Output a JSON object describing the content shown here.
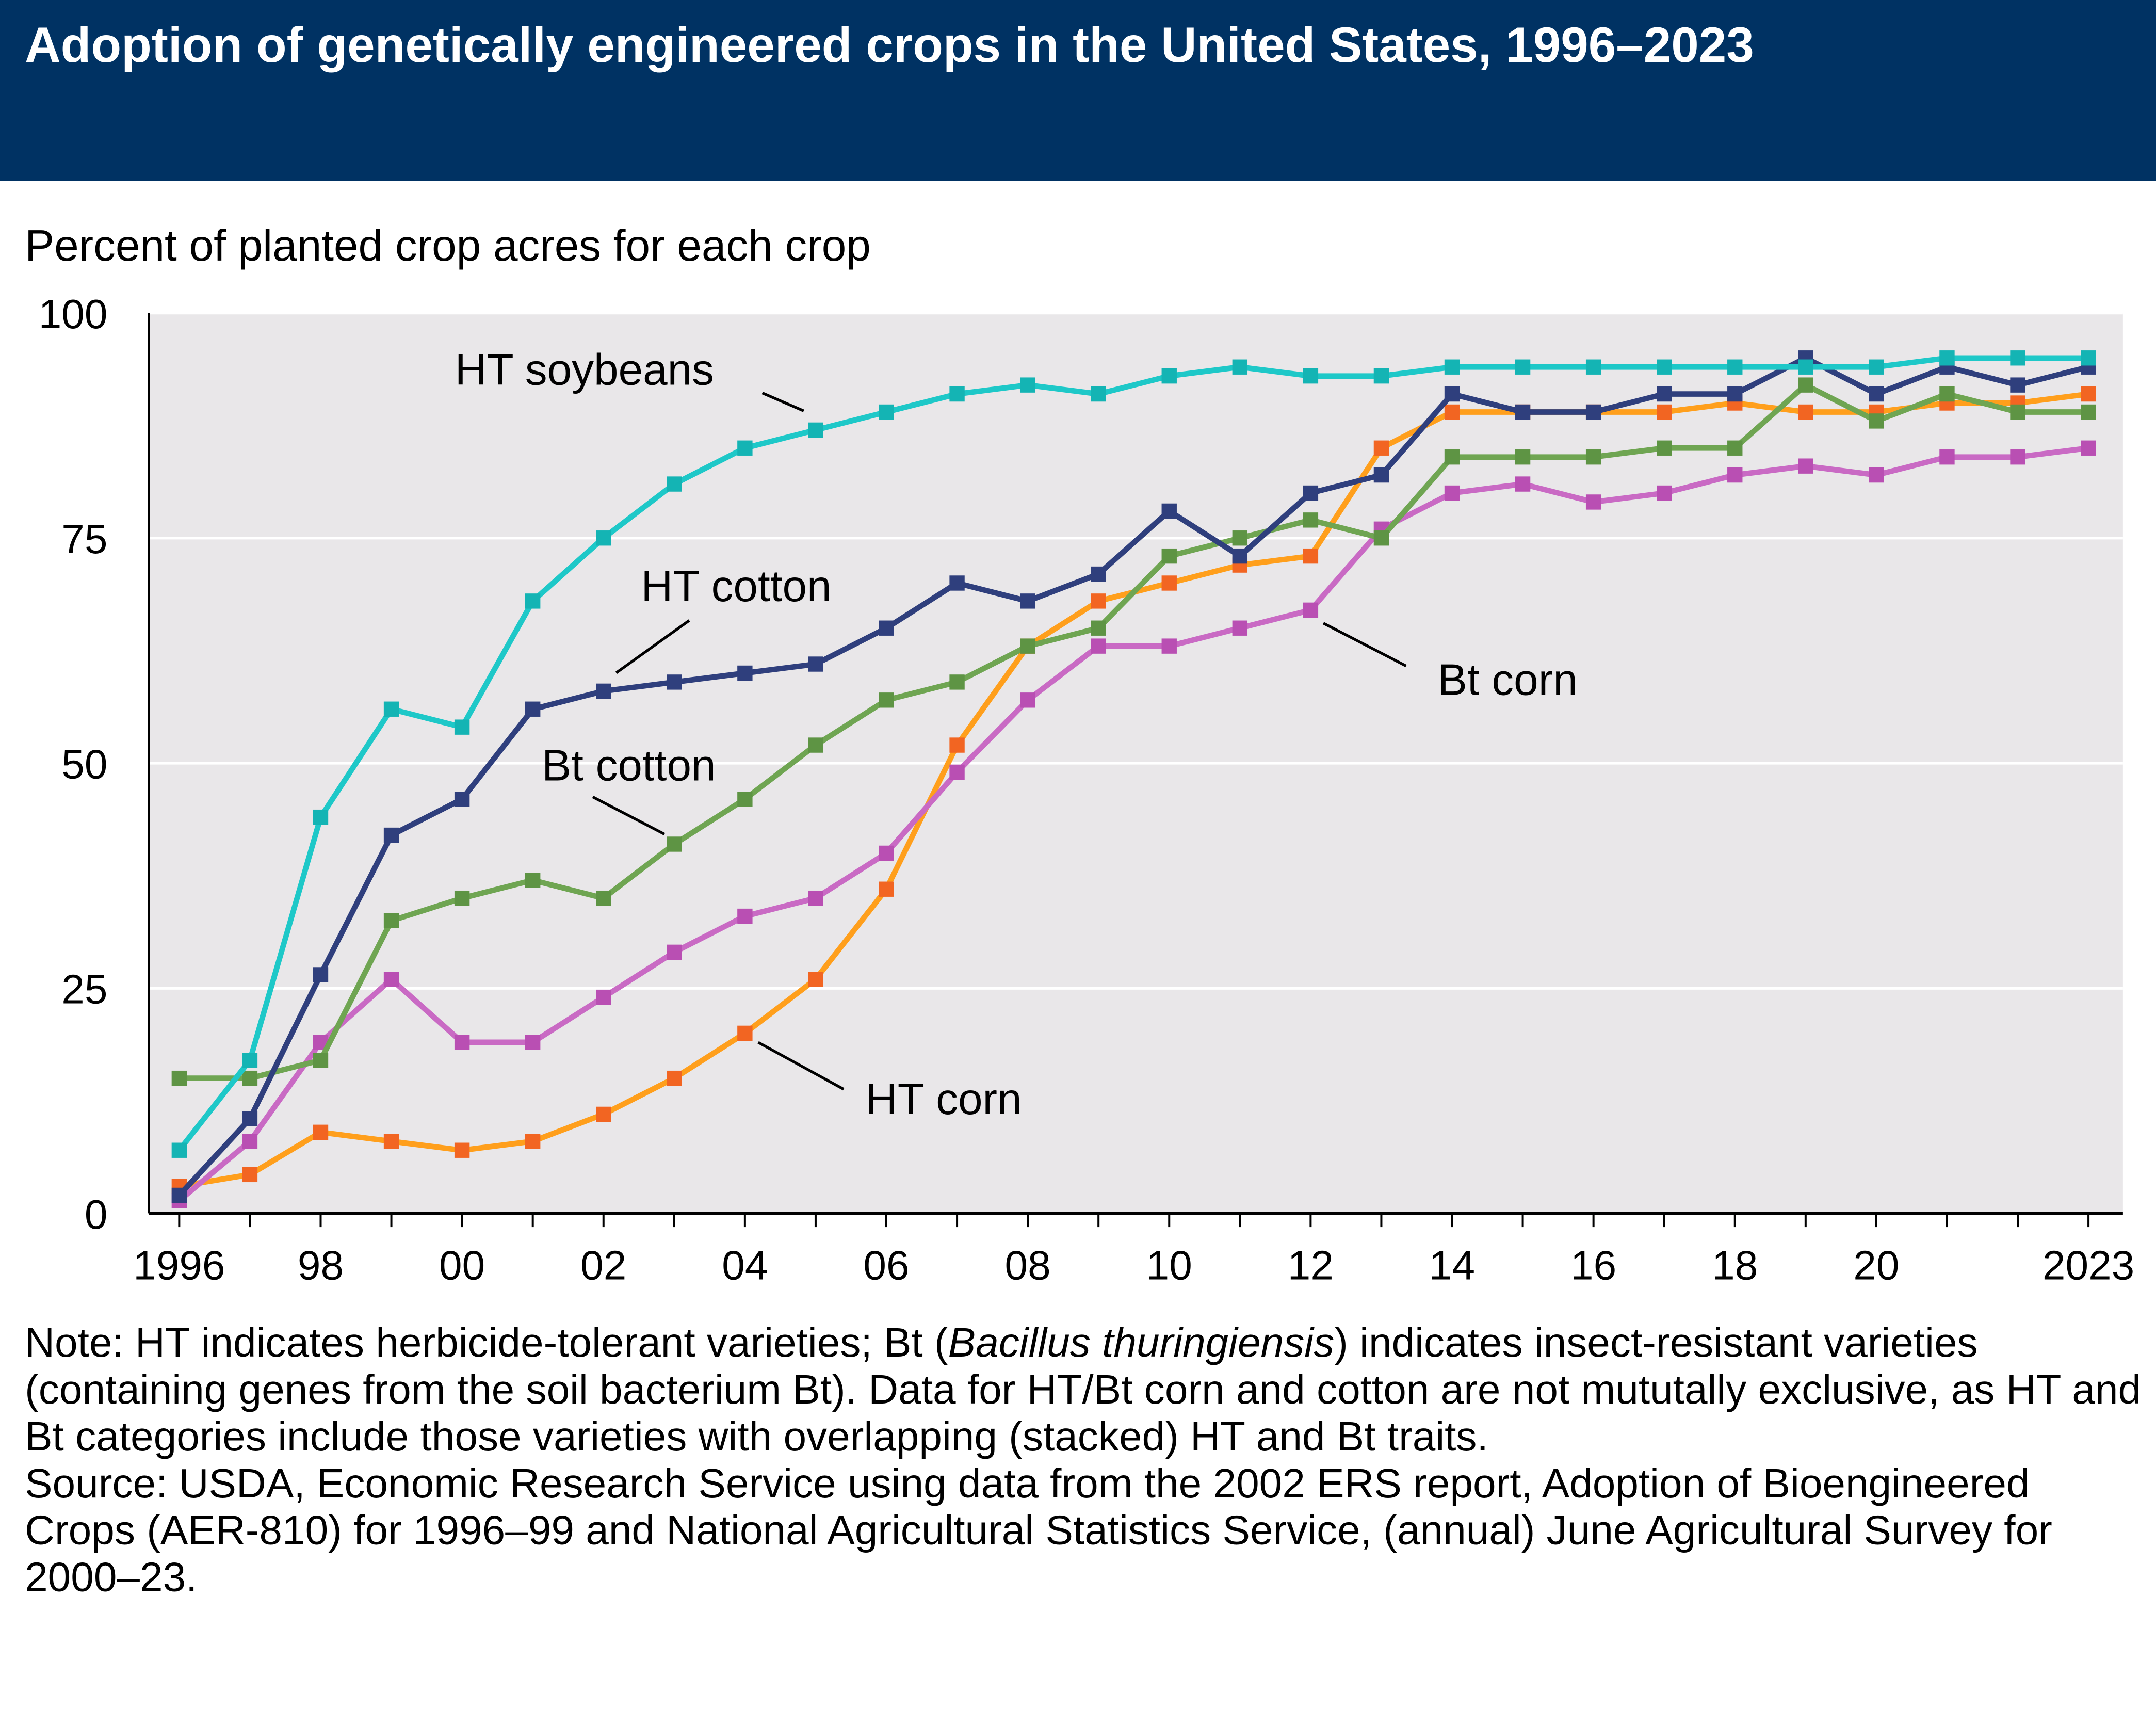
{
  "title": "Adoption of genetically engineered crops in the United States, 1996–2023",
  "note": {
    "prefix": "Note: HT indicates herbicide-tolerant varieties; Bt (",
    "italic": "Bacillus thuringiensis",
    "suffix": ") indicates insect-resistant varieties (containing genes from the soil bacterium Bt). Data for HT/Bt corn and cotton are not mututally exclusive, as HT and Bt categories include those varieties with overlapping (stacked) HT and Bt traits."
  },
  "source": "Source: USDA, Economic Research Service using data from the 2002 ERS report, Adoption of Bioengineered Crops (AER-810) for 1996–99 and National Agricultural Statistics Service, (annual) June Agricultural Survey for 2000–23.",
  "chart_data": {
    "type": "line",
    "title": "Adoption of genetically engineered crops in the United States, 1996–2023",
    "ylabel": "Percent of planted crop acres for each crop",
    "xlabel": "",
    "ylim": [
      0,
      100
    ],
    "yticks": [
      0,
      25,
      50,
      75,
      100
    ],
    "xticklabels": [
      {
        "year": 1996,
        "label": "1996"
      },
      {
        "year": 1998,
        "label": "98"
      },
      {
        "year": 2000,
        "label": "00"
      },
      {
        "year": 2002,
        "label": "02"
      },
      {
        "year": 2004,
        "label": "04"
      },
      {
        "year": 2006,
        "label": "06"
      },
      {
        "year": 2008,
        "label": "08"
      },
      {
        "year": 2010,
        "label": "10"
      },
      {
        "year": 2012,
        "label": "12"
      },
      {
        "year": 2014,
        "label": "14"
      },
      {
        "year": 2016,
        "label": "16"
      },
      {
        "year": 2018,
        "label": "18"
      },
      {
        "year": 2020,
        "label": "20"
      },
      {
        "year": 2023,
        "label": "2023"
      }
    ],
    "grid": true,
    "x": [
      1996,
      1997,
      1998,
      1999,
      2000,
      2001,
      2002,
      2003,
      2004,
      2005,
      2006,
      2007,
      2008,
      2009,
      2010,
      2011,
      2012,
      2013,
      2014,
      2015,
      2016,
      2017,
      2018,
      2019,
      2020,
      2021,
      2022,
      2023
    ],
    "series": [
      {
        "name": "HT corn",
        "color": "#ff9f1c",
        "marker": "#f26522",
        "values": [
          3,
          4.3,
          9,
          8,
          7,
          8,
          11,
          15,
          20,
          26,
          36,
          52,
          63,
          68,
          70,
          72,
          73,
          85,
          89,
          89,
          89,
          89,
          90,
          89,
          89,
          90,
          90,
          91
        ]
      },
      {
        "name": "Bt corn",
        "color": "#c96ac4",
        "marker": "#b94fb3",
        "values": [
          1.4,
          8,
          19,
          26,
          19,
          19,
          24,
          29,
          33,
          35,
          40,
          49,
          57,
          63,
          63,
          65,
          67,
          76,
          80,
          81,
          79,
          80,
          82,
          83,
          82,
          84,
          84,
          85
        ]
      },
      {
        "name": "Bt cotton",
        "color": "#6fa552",
        "marker": "#5e9444",
        "values": [
          15,
          15,
          17,
          32.5,
          35,
          37,
          35,
          41,
          46,
          52,
          57,
          59,
          63,
          65,
          73,
          75,
          77,
          75,
          84,
          84,
          84,
          85,
          85,
          92,
          88,
          91,
          89,
          89
        ]
      },
      {
        "name": "HT cotton",
        "color": "#2f3f7d",
        "marker": "#2f3f7d",
        "values": [
          2,
          10.5,
          26.5,
          42,
          46,
          56,
          58,
          59,
          60,
          61,
          65,
          70,
          68,
          71,
          78,
          73,
          80,
          82,
          91,
          89,
          89,
          91,
          91,
          95,
          91,
          94,
          92,
          94
        ]
      },
      {
        "name": "HT soybeans",
        "color": "#1ec8c8",
        "marker": "#14b4b4",
        "values": [
          7,
          17,
          44,
          56,
          54,
          68,
          75,
          81,
          85,
          87,
          89,
          91,
          92,
          91,
          93,
          94,
          93,
          93,
          94,
          94,
          94,
          94,
          94,
          94,
          94,
          95,
          95,
          95
        ]
      }
    ],
    "annotations": [
      {
        "text": "HT soybeans",
        "series": "HT soybeans"
      },
      {
        "text": "HT cotton",
        "series": "HT cotton"
      },
      {
        "text": "Bt cotton",
        "series": "Bt cotton"
      },
      {
        "text": "Bt corn",
        "series": "Bt corn"
      },
      {
        "text": "HT corn",
        "series": "HT corn"
      }
    ]
  }
}
